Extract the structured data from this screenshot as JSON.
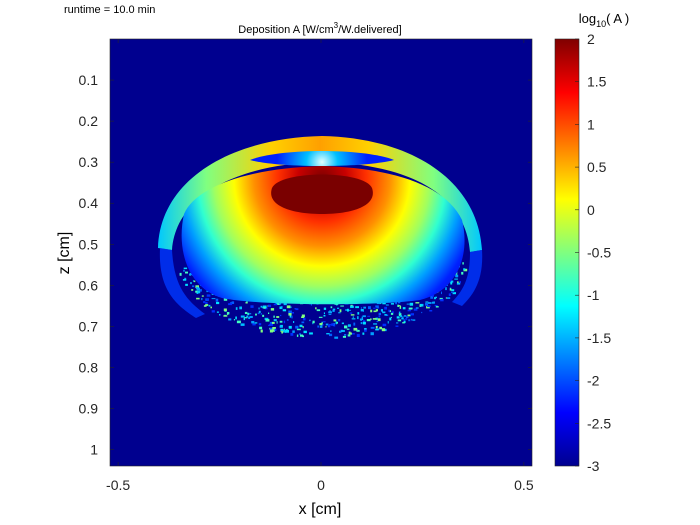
{
  "runtime_text": "runtime = 10.0 min",
  "chart_data": {
    "type": "heatmap",
    "title": "Deposition A [W/cm³/W.delivered]",
    "title_parts": {
      "prefix": "Deposition A [W/cm",
      "superscript": "3",
      "suffix": "/W.delivered]"
    },
    "xlabel": "x [cm]",
    "ylabel": "z [cm]",
    "xlim": [
      -0.52,
      0.52
    ],
    "ylim": [
      1.04,
      0.0
    ],
    "y_direction": "reversed",
    "x_ticks": [
      -0.5,
      0,
      0.5
    ],
    "x_tick_labels": [
      "-0.5",
      "0",
      "0.5"
    ],
    "y_ticks": [
      0.1,
      0.2,
      0.3,
      0.4,
      0.5,
      0.6,
      0.7,
      0.8,
      0.9,
      1
    ],
    "y_tick_labels": [
      "0.1",
      "0.2",
      "0.3",
      "0.4",
      "0.5",
      "0.6",
      "0.7",
      "0.8",
      "0.9",
      "1"
    ],
    "colormap": "jet",
    "background_color": "#00008f",
    "colorbar": {
      "title": "log10( A )",
      "title_parts": {
        "prefix": "log",
        "subscript": "10",
        "suffix": "( A )"
      },
      "range": [
        -3,
        2
      ],
      "ticks": [
        2,
        1.5,
        1,
        0.5,
        0,
        -0.5,
        -1,
        -1.5,
        -2,
        -2.5,
        -3
      ],
      "tick_labels": [
        "2",
        "1.5",
        "1",
        "0.5",
        "0",
        "-0.5",
        "-1",
        "-1.5",
        "-2",
        "-2.5",
        "-3"
      ]
    },
    "features": {
      "peak": {
        "x": 0.0,
        "z": 0.38,
        "log10_value": 2
      },
      "outer_shell": {
        "center_x": 0.0,
        "center_z": 0.53,
        "outer_radius_x": 0.41,
        "outer_radius_z": 0.29,
        "thickness_z": 0.05,
        "log10_value": 0.5
      },
      "inner_body": {
        "center_x": 0.0,
        "center_z": 0.55,
        "radius_x": 0.35,
        "radius_z": 0.3,
        "top_z": 0.31,
        "bottom_z": 0.7
      }
    }
  }
}
